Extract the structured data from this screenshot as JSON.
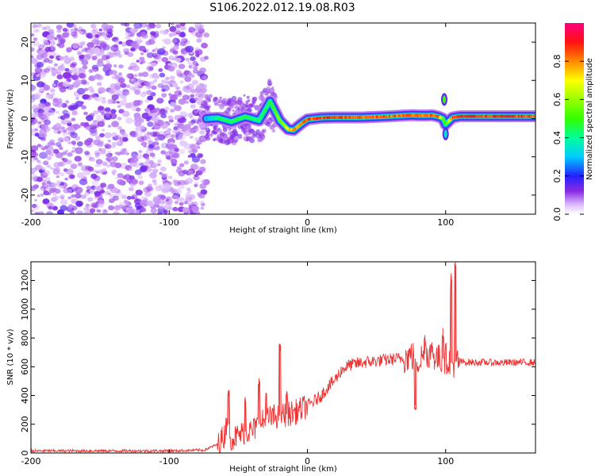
{
  "title": "S106.2022.012.19.08.R03",
  "chart_data": [
    {
      "type": "heatmap",
      "name": "spectrogram",
      "xlabel": "Height of straight line (km)",
      "ylabel": "Frequency (Hz)",
      "xlim": [
        -200,
        165
      ],
      "ylim": [
        -25,
        25
      ],
      "xticks": [
        -200,
        -100,
        0,
        100
      ],
      "xtick_labels": [
        "-200",
        "-100",
        "0",
        "100"
      ],
      "yticks": [
        -20,
        -10,
        0,
        10,
        20
      ],
      "ytick_labels": [
        "-20",
        "-10",
        "0",
        "10",
        "20"
      ],
      "noise_region_x": [
        -200,
        -73
      ],
      "noise_level": 0.25,
      "carrier_track": {
        "x": [
          -73,
          -65,
          -55,
          -45,
          -35,
          -27,
          -20,
          -14,
          -10,
          -5,
          0,
          10,
          20,
          40,
          60,
          75,
          85,
          90,
          95,
          98,
          100,
          105,
          110,
          130,
          150,
          165
        ],
        "freq": [
          0,
          0.2,
          -0.8,
          0.5,
          -0.5,
          4.5,
          -0.5,
          -2.8,
          -3.0,
          -1.5,
          -0.2,
          0.2,
          0.3,
          0.3,
          0.6,
          0.9,
          0.8,
          0.9,
          0.5,
          0.0,
          -1.5,
          0.3,
          0.6,
          0.6,
          0.6,
          0.6
        ],
        "amplitude": [
          0.3,
          0.45,
          0.5,
          0.5,
          0.45,
          0.5,
          0.6,
          0.75,
          0.85,
          0.85,
          0.9,
          0.95,
          0.95,
          0.9,
          0.9,
          0.9,
          0.85,
          0.9,
          0.9,
          0.6,
          0.5,
          0.9,
          0.95,
          0.95,
          0.95,
          0.9
        ]
      }
    },
    {
      "type": "colorbar",
      "label": "Normalized spectral amplitude",
      "range": [
        0.0,
        1.0
      ],
      "ticks": [
        0.0,
        0.2,
        0.4,
        0.6,
        0.8
      ],
      "tick_labels": [
        "0.0",
        "0.2",
        "0.4",
        "0.6",
        "0.8"
      ]
    },
    {
      "type": "line",
      "name": "snr",
      "xlabel": "Height of straight line (km)",
      "ylabel": "SNR (10 * v/v)",
      "xlim": [
        -200,
        165
      ],
      "ylim": [
        0,
        1330
      ],
      "xticks": [
        -200,
        -100,
        0,
        100
      ],
      "xtick_labels": [
        "-200",
        "-100",
        "0",
        "100"
      ],
      "yticks": [
        0,
        200,
        400,
        600,
        800,
        1000,
        1200
      ],
      "ytick_labels": [
        "0",
        "200",
        "400",
        "600",
        "800",
        "1000",
        "1200"
      ],
      "series": [
        {
          "name": "SNR",
          "color": "#ee3333",
          "x": [
            -200,
            -150,
            -100,
            -75,
            -65,
            -60,
            -58,
            -55,
            -50,
            -45,
            -40,
            -35,
            -30,
            -25,
            -20,
            -15,
            -10,
            -5,
            0,
            5,
            10,
            15,
            20,
            25,
            30,
            40,
            50,
            60,
            70,
            75,
            80,
            85,
            90,
            95,
            100,
            105,
            108,
            110,
            120,
            130,
            140,
            150,
            165
          ],
          "y": [
            15,
            15,
            15,
            20,
            60,
            120,
            250,
            100,
            120,
            150,
            150,
            200,
            230,
            250,
            260,
            270,
            280,
            300,
            330,
            360,
            400,
            460,
            510,
            580,
            610,
            630,
            640,
            650,
            660,
            680,
            640,
            690,
            700,
            650,
            660,
            620,
            640,
            635,
            630,
            630,
            628,
            630,
            630
          ]
        }
      ],
      "spikes": [
        {
          "x": -57,
          "y": 440
        },
        {
          "x": -45,
          "y": 390
        },
        {
          "x": -35,
          "y": 520
        },
        {
          "x": -30,
          "y": 420
        },
        {
          "x": -20,
          "y": 760
        },
        {
          "x": -15,
          "y": 430
        },
        {
          "x": 78,
          "y": 330
        },
        {
          "x": 85,
          "y": 820
        },
        {
          "x": 90,
          "y": 770
        },
        {
          "x": 98,
          "y": 870
        },
        {
          "x": 104,
          "y": 1250
        },
        {
          "x": 107,
          "y": 1330
        }
      ]
    }
  ]
}
